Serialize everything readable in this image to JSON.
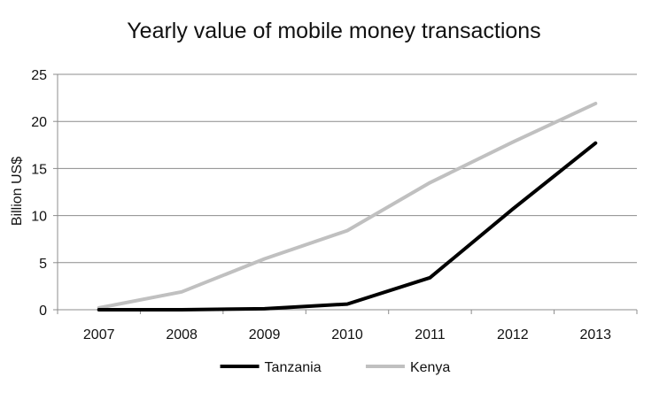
{
  "chart_data": {
    "type": "line",
    "title": "Yearly value of mobile money transactions",
    "xlabel": "",
    "ylabel": "Billion  US$",
    "x": [
      "2007",
      "2008",
      "2009",
      "2010",
      "2011",
      "2012",
      "2013"
    ],
    "ylim": [
      0,
      25
    ],
    "yticks": [
      0,
      5,
      10,
      15,
      20,
      25
    ],
    "grid": true,
    "legend_position": "bottom",
    "series": [
      {
        "name": "Tanzania",
        "color": "#000000",
        "values": [
          0,
          0,
          0.1,
          0.6,
          3.4,
          10.7,
          17.7
        ]
      },
      {
        "name": "Kenya",
        "color": "#c0c0c0",
        "values": [
          0.2,
          1.9,
          5.4,
          8.4,
          13.5,
          17.8,
          21.9
        ]
      }
    ]
  }
}
